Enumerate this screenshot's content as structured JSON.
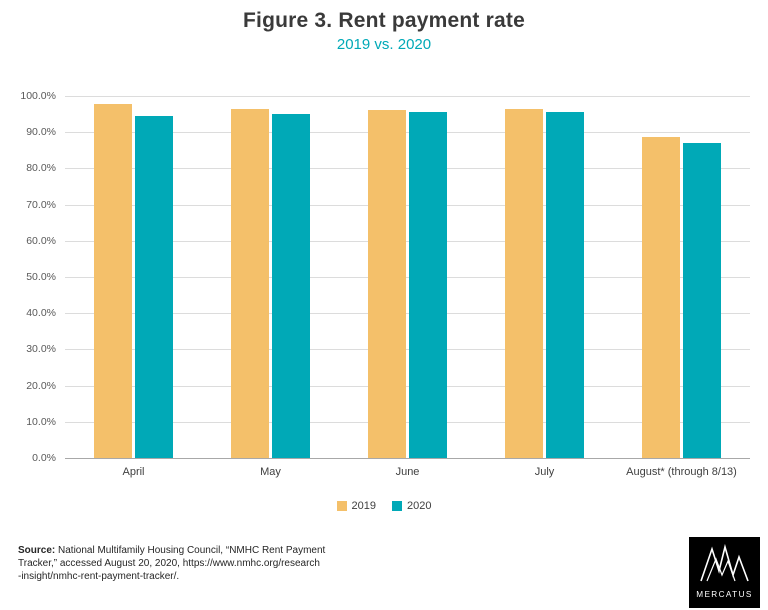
{
  "header": {
    "title": "Figure 3. Rent payment rate",
    "subtitle": "2019 vs. 2020"
  },
  "chart_data": {
    "type": "bar",
    "title": "Figure 3. Rent payment rate",
    "subtitle": "2019 vs. 2020",
    "categories": [
      "April",
      "May",
      "June",
      "July",
      "August* (through 8/13)"
    ],
    "series": [
      {
        "name": "2019",
        "color": "#f4c06a",
        "values": [
          97.7,
          96.3,
          96.0,
          96.4,
          88.8
        ]
      },
      {
        "name": "2020",
        "color": "#00a9b7",
        "values": [
          94.6,
          95.0,
          95.5,
          95.7,
          86.9
        ]
      }
    ],
    "xlabel": "",
    "ylabel": "",
    "ylim": [
      0,
      100
    ],
    "ytick_step": 10,
    "ytick_suffix": "%",
    "grid": true,
    "legend_position": "bottom"
  },
  "footer": {
    "source_label": "Source:",
    "line1": " National Multifamily Housing Council, “NMHC Rent Payment",
    "line2": "Tracker,” accessed August 20, 2020,  https://www.nmhc.org/research",
    "line3": "-insight/nmhc-rent-payment-tracker/."
  },
  "logo": {
    "text": "MERCATUS"
  },
  "colors": {
    "accent_teal": "#00a9b7",
    "accent_orange": "#f4c06a",
    "gridline": "#dcdcdc"
  }
}
